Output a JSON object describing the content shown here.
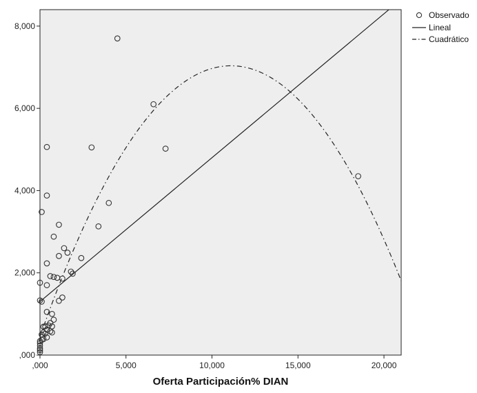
{
  "chart_data": {
    "type": "scatter",
    "title": "",
    "xlabel": "Oferta Participación% DIAN",
    "ylabel": "",
    "xlim": [
      0,
      21000
    ],
    "ylim": [
      0,
      8400
    ],
    "x_ticks": [
      {
        "value": 0,
        "label": ",000"
      },
      {
        "value": 5000,
        "label": "5,000"
      },
      {
        "value": 10000,
        "label": "10,000"
      },
      {
        "value": 15000,
        "label": "15,000"
      },
      {
        "value": 20000,
        "label": "20,000"
      }
    ],
    "y_ticks": [
      {
        "value": 0,
        "label": ",000"
      },
      {
        "value": 2000,
        "label": "2,000"
      },
      {
        "value": 4000,
        "label": "4,000"
      },
      {
        "value": 6000,
        "label": "6,000"
      },
      {
        "value": 8000,
        "label": "8,000"
      }
    ],
    "background": "#eeeeee",
    "grid": false,
    "legend_position": "top-right outside",
    "series": [
      {
        "name": "Observado",
        "kind": "points",
        "points": [
          [
            4500,
            7700
          ],
          [
            6600,
            6100
          ],
          [
            3000,
            5050
          ],
          [
            7300,
            5020
          ],
          [
            400,
            5060
          ],
          [
            18500,
            4350
          ],
          [
            4000,
            3700
          ],
          [
            400,
            3880
          ],
          [
            100,
            3480
          ],
          [
            3400,
            3130
          ],
          [
            1100,
            3170
          ],
          [
            800,
            2880
          ],
          [
            1400,
            2600
          ],
          [
            1100,
            2410
          ],
          [
            1600,
            2490
          ],
          [
            2400,
            2360
          ],
          [
            400,
            2230
          ],
          [
            1800,
            2030
          ],
          [
            1900,
            1980
          ],
          [
            600,
            1920
          ],
          [
            800,
            1900
          ],
          [
            1000,
            1880
          ],
          [
            1300,
            1860
          ],
          [
            400,
            1700
          ],
          [
            0,
            1760
          ],
          [
            1300,
            1400
          ],
          [
            1100,
            1320
          ],
          [
            100,
            1300
          ],
          [
            0,
            1330
          ],
          [
            400,
            1050
          ],
          [
            700,
            1000
          ],
          [
            800,
            860
          ],
          [
            600,
            780
          ],
          [
            700,
            700
          ],
          [
            500,
            720
          ],
          [
            300,
            700
          ],
          [
            200,
            690
          ],
          [
            400,
            620
          ],
          [
            600,
            580
          ],
          [
            700,
            550
          ],
          [
            200,
            550
          ],
          [
            300,
            520
          ],
          [
            100,
            500
          ],
          [
            400,
            430
          ],
          [
            200,
            390
          ],
          [
            100,
            370
          ],
          [
            0,
            340
          ],
          [
            0,
            290
          ],
          [
            0,
            230
          ],
          [
            0,
            160
          ],
          [
            0,
            120
          ],
          [
            0,
            70
          ]
        ]
      },
      {
        "name": "Lineal",
        "kind": "line",
        "style": "solid",
        "x_range": [
          0,
          20300
        ],
        "coefficients": {
          "intercept": 1300,
          "slope": 0.35
        }
      },
      {
        "name": "Cuadrático",
        "kind": "curve",
        "style": "dashdot",
        "x_range": [
          0,
          21000
        ],
        "coefficients": {
          "c0": 450,
          "c1": 1.186,
          "c2": -5.34e-05
        }
      }
    ]
  }
}
